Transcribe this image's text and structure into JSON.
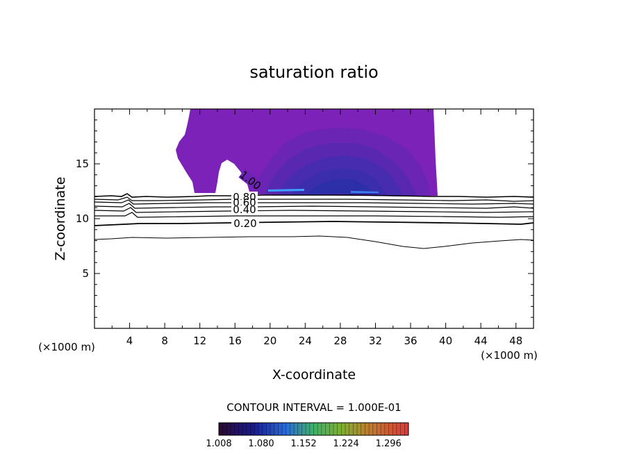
{
  "chart_data": {
    "type": "contour",
    "title": "saturation ratio",
    "xlabel": "X-coordinate",
    "ylabel": "Z-coordinate",
    "x_unit": "(×1000 m)",
    "z_unit": "(×1000 m)",
    "xlim": [
      0,
      50
    ],
    "ylim": [
      0,
      20
    ],
    "x_ticks": [
      "4",
      "8",
      "12",
      "16",
      "20",
      "24",
      "28",
      "32",
      "36",
      "40",
      "44",
      "48"
    ],
    "y_ticks": [
      "5",
      "10",
      "15"
    ],
    "contour_labels": [
      "1.00",
      "0.80",
      "0.60",
      "0.40",
      "0.20"
    ],
    "contour_interval_text": "CONTOUR INTERVAL = 1.000E-01",
    "colorbar": {
      "ticks": [
        "1.008",
        "1.080",
        "1.152",
        "1.224",
        "1.296"
      ],
      "range": [
        1.008,
        1.33
      ]
    },
    "supersaturated_region": {
      "x_range": [
        11,
        39
      ],
      "z_range": [
        12.2,
        20
      ],
      "peak_x": 27,
      "peak_z": 12.5
    },
    "colors": {
      "fill_base": "#7c22b8",
      "fill_mid": "#5a2bb0",
      "fill_deep": "#3f2fae",
      "fill_core": "#2a2fa6",
      "streak": "#3ea0ff"
    }
  }
}
